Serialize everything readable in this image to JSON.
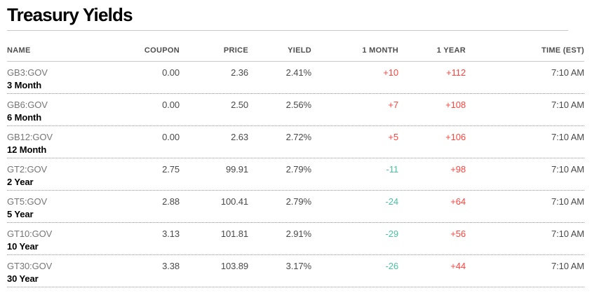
{
  "page": {
    "title": "Treasury Yields"
  },
  "colors": {
    "positive_change": "#ff433d",
    "negative_change": "#4bc2a0",
    "header_text": "#4e4e4e",
    "ticker_text": "#767676",
    "value_text": "#4a4a4a",
    "divider": "#c9c9c9"
  },
  "table": {
    "headers": {
      "name": "NAME",
      "coupon": "COUPON",
      "price": "PRICE",
      "yield": "YIELD",
      "month1": "1 MONTH",
      "year1": "1 YEAR",
      "time": "TIME (EST)"
    },
    "rows": [
      {
        "ticker": "GB3:GOV",
        "maturity": "3 Month",
        "coupon": "0.00",
        "price": "2.36",
        "yield": "2.41%",
        "change_1m": "+10",
        "change_1y": "+112",
        "time": "7:10 AM"
      },
      {
        "ticker": "GB6:GOV",
        "maturity": "6 Month",
        "coupon": "0.00",
        "price": "2.50",
        "yield": "2.56%",
        "change_1m": "+7",
        "change_1y": "+108",
        "time": "7:10 AM"
      },
      {
        "ticker": "GB12:GOV",
        "maturity": "12 Month",
        "coupon": "0.00",
        "price": "2.63",
        "yield": "2.72%",
        "change_1m": "+5",
        "change_1y": "+106",
        "time": "7:10 AM"
      },
      {
        "ticker": "GT2:GOV",
        "maturity": "2 Year",
        "coupon": "2.75",
        "price": "99.91",
        "yield": "2.79%",
        "change_1m": "-11",
        "change_1y": "+98",
        "time": "7:10 AM"
      },
      {
        "ticker": "GT5:GOV",
        "maturity": "5 Year",
        "coupon": "2.88",
        "price": "100.41",
        "yield": "2.79%",
        "change_1m": "-24",
        "change_1y": "+64",
        "time": "7:10 AM"
      },
      {
        "ticker": "GT10:GOV",
        "maturity": "10 Year",
        "coupon": "3.13",
        "price": "101.81",
        "yield": "2.91%",
        "change_1m": "-29",
        "change_1y": "+56",
        "time": "7:10 AM"
      },
      {
        "ticker": "GT30:GOV",
        "maturity": "30 Year",
        "coupon": "3.38",
        "price": "103.89",
        "yield": "3.17%",
        "change_1m": "-26",
        "change_1y": "+44",
        "time": "7:10 AM"
      }
    ]
  }
}
